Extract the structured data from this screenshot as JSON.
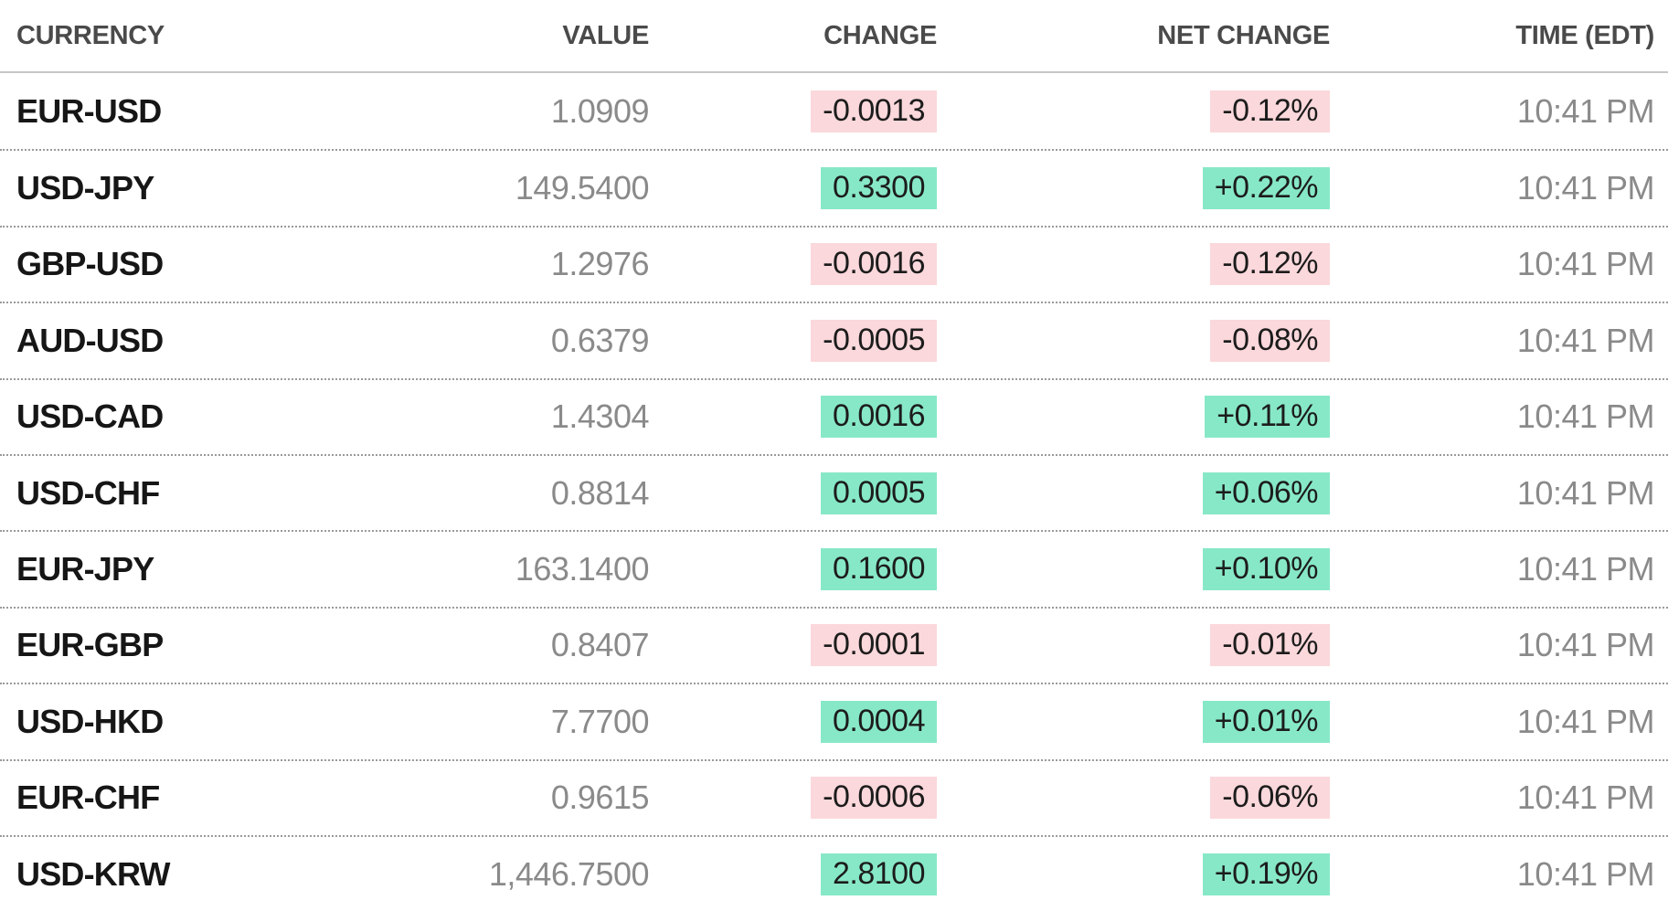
{
  "table": {
    "columns": [
      {
        "label": "CURRENCY"
      },
      {
        "label": "VALUE"
      },
      {
        "label": "CHANGE"
      },
      {
        "label": "NET CHANGE"
      },
      {
        "label": "TIME (EDT)"
      }
    ],
    "colors": {
      "positive_bg": "#87e8c8",
      "negative_bg": "#fbd8db",
      "currency_text": "#161616",
      "muted_text": "#8a8a8a",
      "header_text": "#4a4a4a"
    },
    "rows": [
      {
        "currency": "EUR-USD",
        "value": "1.0909",
        "change": "-0.0013",
        "net_change": "-0.12%",
        "direction": "down",
        "time": "10:41 PM"
      },
      {
        "currency": "USD-JPY",
        "value": "149.5400",
        "change": "0.3300",
        "net_change": "+0.22%",
        "direction": "up",
        "time": "10:41 PM"
      },
      {
        "currency": "GBP-USD",
        "value": "1.2976",
        "change": "-0.0016",
        "net_change": "-0.12%",
        "direction": "down",
        "time": "10:41 PM"
      },
      {
        "currency": "AUD-USD",
        "value": "0.6379",
        "change": "-0.0005",
        "net_change": "-0.08%",
        "direction": "down",
        "time": "10:41 PM"
      },
      {
        "currency": "USD-CAD",
        "value": "1.4304",
        "change": "0.0016",
        "net_change": "+0.11%",
        "direction": "up",
        "time": "10:41 PM"
      },
      {
        "currency": "USD-CHF",
        "value": "0.8814",
        "change": "0.0005",
        "net_change": "+0.06%",
        "direction": "up",
        "time": "10:41 PM"
      },
      {
        "currency": "EUR-JPY",
        "value": "163.1400",
        "change": "0.1600",
        "net_change": "+0.10%",
        "direction": "up",
        "time": "10:41 PM"
      },
      {
        "currency": "EUR-GBP",
        "value": "0.8407",
        "change": "-0.0001",
        "net_change": "-0.01%",
        "direction": "down",
        "time": "10:41 PM"
      },
      {
        "currency": "USD-HKD",
        "value": "7.7700",
        "change": "0.0004",
        "net_change": "+0.01%",
        "direction": "up",
        "time": "10:41 PM"
      },
      {
        "currency": "EUR-CHF",
        "value": "0.9615",
        "change": "-0.0006",
        "net_change": "-0.06%",
        "direction": "down",
        "time": "10:41 PM"
      },
      {
        "currency": "USD-KRW",
        "value": "1,446.7500",
        "change": "2.8100",
        "net_change": "+0.19%",
        "direction": "up",
        "time": "10:41 PM"
      }
    ]
  }
}
